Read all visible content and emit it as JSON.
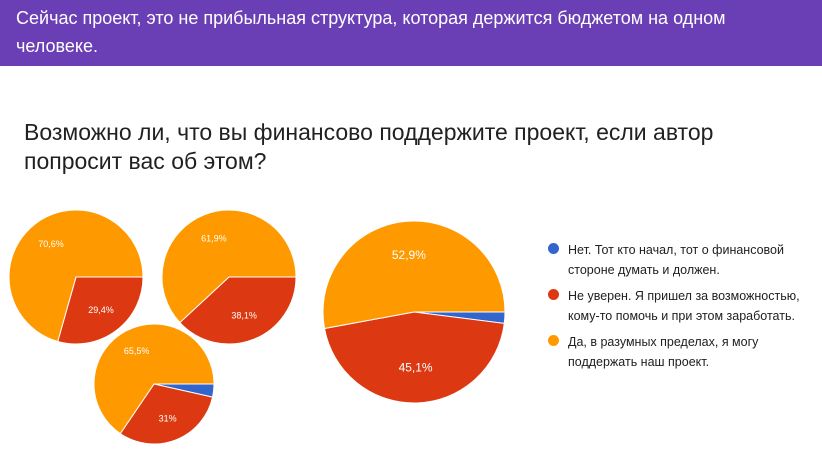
{
  "banner": {
    "text": "Сейчас проект, это не прибыльная структура, которая держится бюджетом на одном человеке."
  },
  "question": {
    "text": "Возможно ли, что вы финансово поддержите проект, если автор попросит вас об этом?"
  },
  "legend": {
    "items": [
      {
        "label": "Нет. Тот кто начал, тот о финансовой стороне думать и должен.",
        "color": "#3366cc"
      },
      {
        "label": "Не уверен. Я пришел за возможностью, кому-то помочь и при этом заработать.",
        "color": "#dc3912"
      },
      {
        "label": "Да, в разумных пределах, я могу поддержать наш проект.",
        "color": "#ff9900"
      }
    ]
  },
  "chart_data": [
    {
      "type": "pie",
      "slices": [
        {
          "category": "Нет. Тот кто начал, тот о финансовой стороне думать и должен.",
          "value": 0,
          "color": "#3366cc",
          "label": ""
        },
        {
          "category": "Не уверен. Я пришел за возможностью, кому-то помочь и при этом заработать.",
          "value": 29.4,
          "color": "#dc3912",
          "label": "29,4%"
        },
        {
          "category": "Да, в разумных пределах, я могу поддержать наш проект.",
          "value": 70.6,
          "color": "#ff9900",
          "label": "70,6%"
        }
      ]
    },
    {
      "type": "pie",
      "slices": [
        {
          "category": "Нет. Тот кто начал, тот о финансовой стороне думать и должен.",
          "value": 0,
          "color": "#3366cc",
          "label": ""
        },
        {
          "category": "Не уверен. Я пришел за возможностью, кому-то помочь и при этом заработать.",
          "value": 38.1,
          "color": "#dc3912",
          "label": "38,1%"
        },
        {
          "category": "Да, в разумных пределах, я могу поддержать наш проект.",
          "value": 61.9,
          "color": "#ff9900",
          "label": "61,9%"
        }
      ]
    },
    {
      "type": "pie",
      "slices": [
        {
          "category": "Нет. Тот кто начал, тот о финансовой стороне думать и должен.",
          "value": 3.5,
          "color": "#3366cc",
          "label": ""
        },
        {
          "category": "Не уверен. Я пришел за возможностью, кому-то помочь и при этом заработать.",
          "value": 31,
          "color": "#dc3912",
          "label": "31%"
        },
        {
          "category": "Да, в разумных пределах, я могу поддержать наш проект.",
          "value": 65.5,
          "color": "#ff9900",
          "label": "65,5%"
        }
      ]
    },
    {
      "type": "pie",
      "slices": [
        {
          "category": "Нет. Тот кто начал, тот о финансовой стороне думать и должен.",
          "value": 2,
          "color": "#3366cc",
          "label": ""
        },
        {
          "category": "Не уверен. Я пришел за возможностью, кому-то помочь и при этом заработать.",
          "value": 45.1,
          "color": "#dc3912",
          "label": "45,1%"
        },
        {
          "category": "Да, в разумных пределах, я могу поддержать наш проект.",
          "value": 52.9,
          "color": "#ff9900",
          "label": "52,9%"
        }
      ]
    }
  ]
}
